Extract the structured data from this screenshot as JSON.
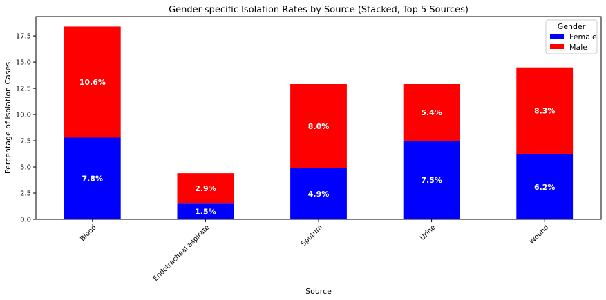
{
  "chart_data": {
    "type": "bar",
    "stacked": true,
    "title": "Gender-specific Isolation Rates by Source (Stacked, Top 5 Sources)",
    "xlabel": "Source",
    "ylabel": "Percentage of Isolation Cases",
    "categories": [
      "Blood",
      "Endotracheal aspirate",
      "Sputum",
      "Urine",
      "Wound"
    ],
    "series": [
      {
        "name": "Female",
        "color": "#0000ff",
        "values": [
          7.8,
          1.5,
          4.9,
          7.5,
          6.2
        ],
        "labels": [
          "7.8%",
          "1.5%",
          "4.9%",
          "7.5%",
          "6.2%"
        ]
      },
      {
        "name": "Male",
        "color": "#ff0000",
        "values": [
          10.6,
          2.9,
          8.0,
          5.4,
          8.3
        ],
        "labels": [
          "10.6%",
          "2.9%",
          "8.0%",
          "5.4%",
          "8.3%"
        ]
      }
    ],
    "ylim": [
      0,
      19.35
    ],
    "yticks": [
      0.0,
      2.5,
      5.0,
      7.5,
      10.0,
      12.5,
      15.0,
      17.5
    ],
    "ytick_labels": [
      "0.0",
      "2.5",
      "5.0",
      "7.5",
      "10.0",
      "12.5",
      "15.0",
      "17.5"
    ],
    "grid": false,
    "legend": {
      "title": "Gender",
      "placement": "top-right"
    }
  }
}
